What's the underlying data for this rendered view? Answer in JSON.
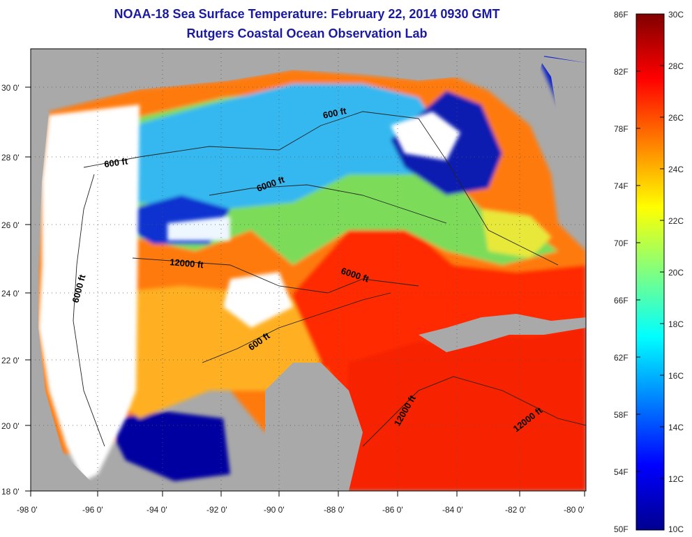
{
  "title_line1": "NOAA-18 Sea Surface Temperature:  February 22, 2014 0930 GMT",
  "title_line2": "Rutgers Coastal Ocean Observation Lab",
  "lon_labels": [
    "-98 0'",
    "-96 0'",
    "-94 0'",
    "-92 0'",
    "-90 0'",
    "-88 0'",
    "-86 0'",
    "-84 0'",
    "-82 0'",
    "-80 0'"
  ],
  "lat_labels": [
    "18 0'",
    "20 0'",
    "22 0'",
    "24 0'",
    "26 0'",
    "28 0'",
    "30 0'"
  ],
  "contour_labels": [
    "600 ft",
    "600 ft",
    "6000 ft",
    "12000 ft",
    "6000 ft",
    "6000 ft",
    "600 ft",
    "12000 ft",
    "12000 ft"
  ],
  "colorbar": {
    "fahrenheit_labels": [
      "86F",
      "82F",
      "78F",
      "74F",
      "70F",
      "66F",
      "62F",
      "58F",
      "54F",
      "50F"
    ],
    "celsius_labels": [
      "30C",
      "28C",
      "26C",
      "24C",
      "22C",
      "20C",
      "18C",
      "16C",
      "14C",
      "12C",
      "10C"
    ],
    "colors": [
      "#00008f",
      "#0000ff",
      "#0080ff",
      "#00ffff",
      "#80ff80",
      "#ffff00",
      "#ff8000",
      "#ff0000",
      "#800000"
    ]
  },
  "colors": {
    "land": "#a9a9a9",
    "cloud": "#ffffff",
    "title": "#1a1aa0"
  }
}
